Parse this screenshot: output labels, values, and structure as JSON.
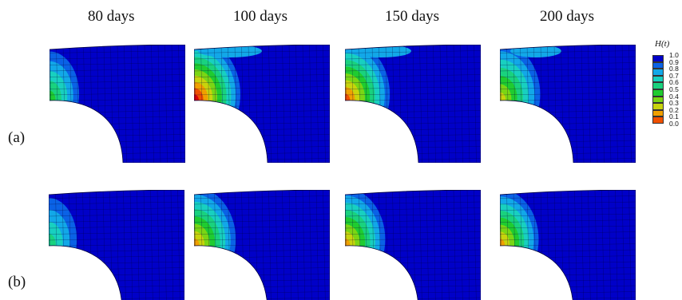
{
  "column_titles": [
    "80 days",
    "100 days",
    "150 days",
    "200 days"
  ],
  "row_labels": [
    "(a)",
    "(b)"
  ],
  "legend": {
    "title": "H(t)",
    "ticks": [
      "1.0",
      "0.9",
      "0.8",
      "0.7",
      "0.6",
      "0.5",
      "0.4",
      "0.3",
      "0.2",
      "0.1",
      "0.0"
    ],
    "colors": [
      "#0000c8",
      "#0a62e6",
      "#12a8e8",
      "#18d0c0",
      "#19d27e",
      "#1fcc30",
      "#7ad614",
      "#c8d40c",
      "#f0a000",
      "#f05000",
      "#d8000a"
    ]
  },
  "panels": [
    {
      "row": "a",
      "day": "80 days",
      "damage_intensity": 0.35,
      "damage_spread": 0.45
    },
    {
      "row": "a",
      "day": "100 days",
      "damage_intensity": 0.95,
      "damage_spread": 1.0
    },
    {
      "row": "a",
      "day": "150 days",
      "damage_intensity": 0.85,
      "damage_spread": 0.95
    },
    {
      "row": "a",
      "day": "200 days",
      "damage_intensity": 0.6,
      "damage_spread": 0.8
    },
    {
      "row": "b",
      "day": "80 days",
      "damage_intensity": 0.3,
      "damage_spread": 0.4
    },
    {
      "row": "b",
      "day": "100 days",
      "damage_intensity": 0.8,
      "damage_spread": 0.85
    },
    {
      "row": "b",
      "day": "150 days",
      "damage_intensity": 0.75,
      "damage_spread": 0.8
    },
    {
      "row": "b",
      "day": "200 days",
      "damage_intensity": 0.7,
      "damage_spread": 0.75
    }
  ]
}
